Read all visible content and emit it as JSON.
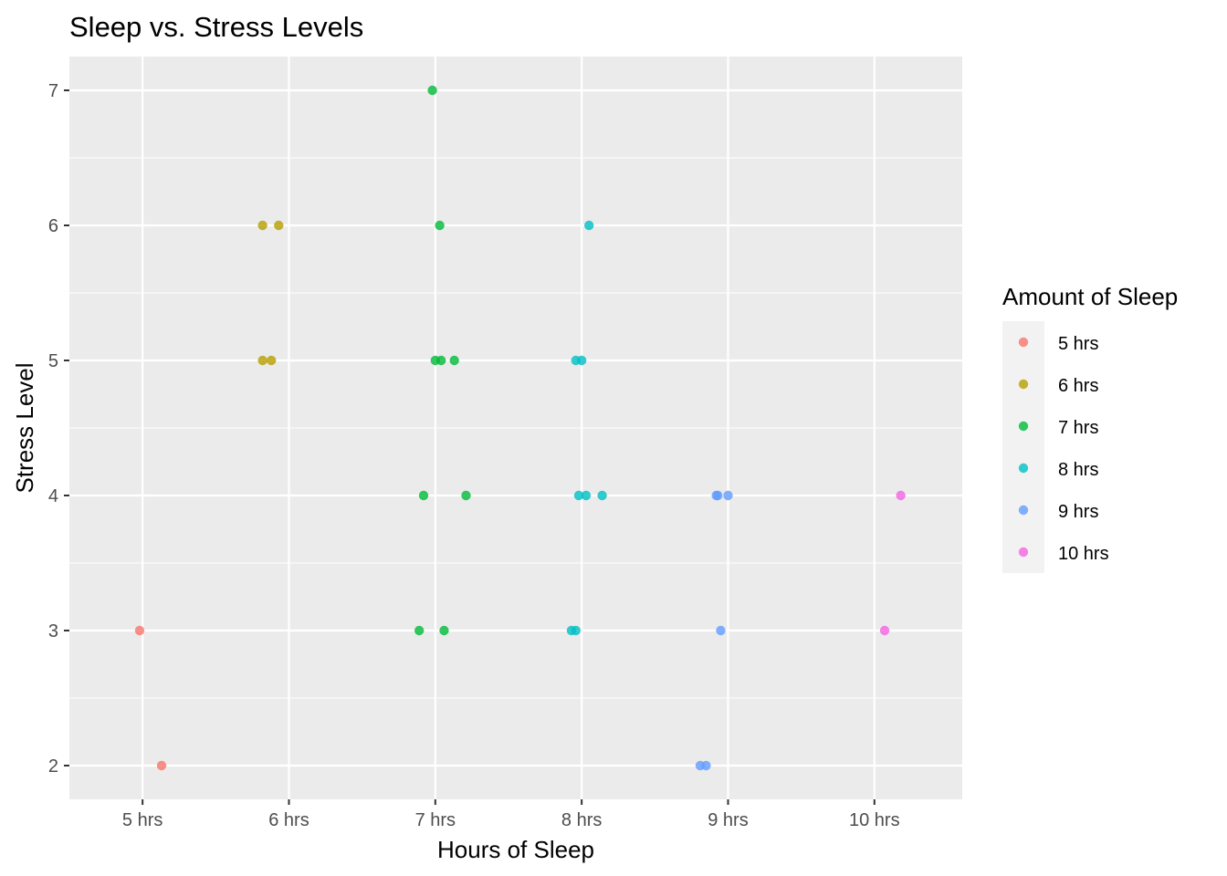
{
  "chart_data": {
    "type": "scatter",
    "title": "Sleep vs. Stress Levels",
    "xlabel": "Hours of Sleep",
    "ylabel": "Stress Level",
    "x_categories": [
      "5 hrs",
      "6 hrs",
      "7 hrs",
      "8 hrs",
      "9 hrs",
      "10 hrs"
    ],
    "y_ticks": [
      2,
      3,
      4,
      5,
      6,
      7
    ],
    "xlim": [
      4.5,
      10.6
    ],
    "ylim": [
      1.75,
      7.25
    ],
    "grid": true,
    "legend": {
      "title": "Amount of Sleep",
      "position": "right"
    },
    "series": [
      {
        "name": "5 hrs",
        "color": "#F8766D",
        "points": [
          [
            4.98,
            3
          ],
          [
            5.13,
            2
          ]
        ]
      },
      {
        "name": "6 hrs",
        "color": "#B79F00",
        "points": [
          [
            5.82,
            6
          ],
          [
            5.93,
            6
          ],
          [
            5.82,
            5
          ],
          [
            5.88,
            5
          ]
        ]
      },
      {
        "name": "7 hrs",
        "color": "#00BA38",
        "points": [
          [
            6.98,
            7
          ],
          [
            7.03,
            6
          ],
          [
            7.0,
            5
          ],
          [
            7.04,
            5
          ],
          [
            7.13,
            5
          ],
          [
            6.92,
            4
          ],
          [
            7.21,
            4
          ],
          [
            6.89,
            3
          ],
          [
            7.06,
            3
          ]
        ]
      },
      {
        "name": "8 hrs",
        "color": "#00BFC4",
        "points": [
          [
            8.05,
            6
          ],
          [
            7.96,
            5
          ],
          [
            8.0,
            5
          ],
          [
            7.98,
            4
          ],
          [
            8.03,
            4
          ],
          [
            8.14,
            4
          ],
          [
            7.93,
            3
          ],
          [
            7.96,
            3
          ]
        ]
      },
      {
        "name": "9 hrs",
        "color": "#619CFF",
        "points": [
          [
            8.92,
            4
          ],
          [
            8.93,
            4
          ],
          [
            9.0,
            4
          ],
          [
            8.95,
            3
          ],
          [
            8.81,
            2
          ],
          [
            8.85,
            2
          ]
        ]
      },
      {
        "name": "10 hrs",
        "color": "#F564E3",
        "points": [
          [
            10.18,
            4
          ],
          [
            10.07,
            3
          ]
        ]
      }
    ]
  }
}
